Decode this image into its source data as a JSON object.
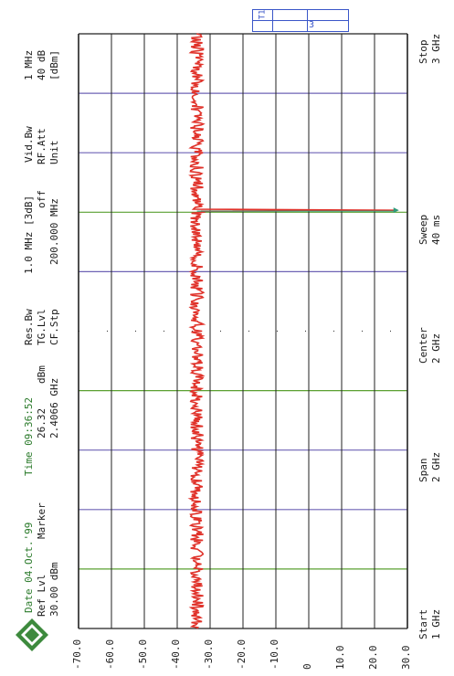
{
  "header": {
    "date": "Date 04.Oct.'99",
    "time": "Time 09:36:52",
    "ref_lvl_label": "Ref Lvl",
    "ref_lvl_value": "30.00 dBm",
    "marker_label": "Marker",
    "marker_level": "26.32",
    "marker_level_unit": "dBm",
    "marker_freq": "2.4066 GHz",
    "res_bw_label": "Res.Bw",
    "res_bw_value": "1.0 MHz [3dB]",
    "tg_lvl_label": "TG.Lvl",
    "tg_lvl_value": "off",
    "cf_stp_label": "CF.Stp",
    "cf_stp_value": "200.000 MHz",
    "vid_bw_label": "Vid.Bw",
    "vid_bw_value": "1 MHz",
    "rf_att_label": "RF.Att",
    "rf_att_value": "40 dB",
    "unit_label": "Unit",
    "unit_value": "[dBm]",
    "trace_label": "T1",
    "trace_num": "3"
  },
  "footer": {
    "start_label": "Start",
    "start_value": "1 GHz",
    "span_label": "Span",
    "span_value": "2 GHz",
    "center_label": "Center",
    "center_value": "2 GHz",
    "sweep_label": "Sweep",
    "sweep_value": "40 ms",
    "stop_label": "Stop",
    "stop_value": "3 GHz"
  },
  "colors": {
    "trace": "#e0322a",
    "marker": "#2f9a7a",
    "grid_vertical": "#6e63b5",
    "grid_green": "#5aa030",
    "grid_horizontal": "#222222",
    "logo": "#3d8a3d"
  },
  "icons": {
    "logo": "rohde-schwarz-logo"
  },
  "chart_data": {
    "type": "line",
    "title": "",
    "xlabel": "",
    "ylabel": "",
    "x_unit": "GHz",
    "y_unit": "dBm",
    "xlim": [
      1,
      3
    ],
    "ylim": [
      -70,
      30
    ],
    "y_ticks": [
      "30.0",
      "20.0",
      "10.0",
      "0",
      "-10.0",
      "-20.0",
      "-30.0",
      "-40.0",
      "-50.0",
      "-60.0",
      "-70.0"
    ],
    "series": [
      {
        "noise_floor_dbm": -34,
        "noise_floor_spread_db": 2.0,
        "peak": {
          "x": 2.4066,
          "y": 26.32
        }
      }
    ],
    "marker": {
      "x": 2.4066,
      "y": 26.32
    },
    "grid": true
  }
}
